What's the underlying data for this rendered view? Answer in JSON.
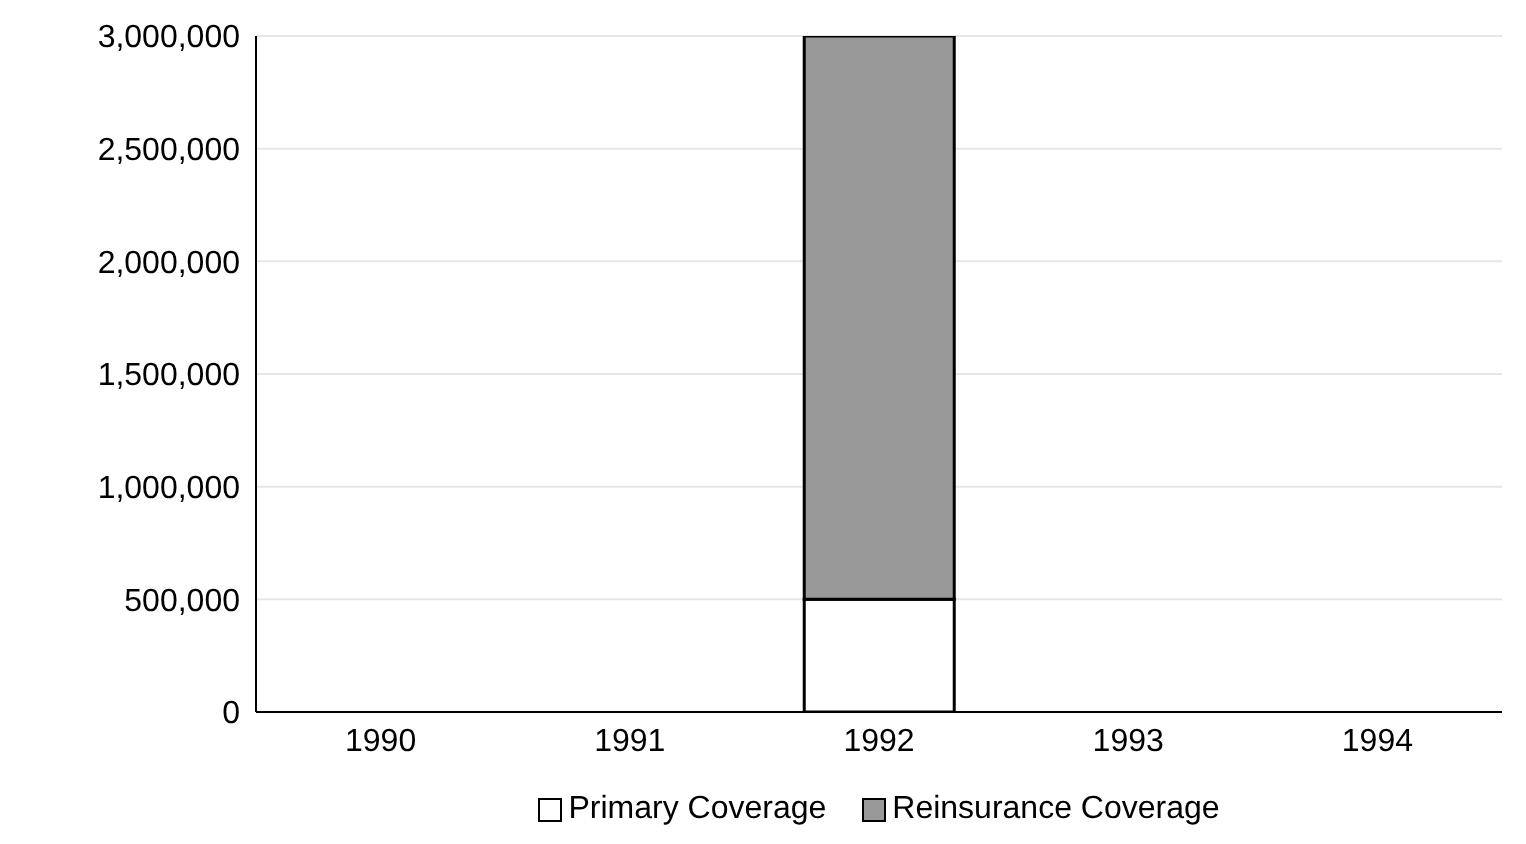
{
  "chart_data": {
    "type": "bar",
    "stacked": true,
    "categories": [
      "1990",
      "1991",
      "1992",
      "1993",
      "1994"
    ],
    "series": [
      {
        "name": "Primary Coverage",
        "color": "#ffffff",
        "values": [
          0,
          0,
          500000,
          0,
          0
        ]
      },
      {
        "name": "Reinsurance Coverage",
        "color": "#999999",
        "values": [
          0,
          0,
          2500000,
          0,
          0
        ]
      }
    ],
    "ylim": [
      0,
      3000000
    ],
    "yticks": [
      0,
      {
        "value": 500000,
        "label": "500,000"
      },
      {
        "value": 1000000,
        "label": "1,000,000"
      },
      {
        "value": 1500000,
        "label": "1,500,000"
      },
      {
        "value": 2000000,
        "label": "2,000,000"
      },
      {
        "value": 2500000,
        "label": "2,500,000"
      },
      {
        "value": 3000000,
        "label": "3,000,000"
      }
    ],
    "grid": "y",
    "legend": "bottom"
  }
}
